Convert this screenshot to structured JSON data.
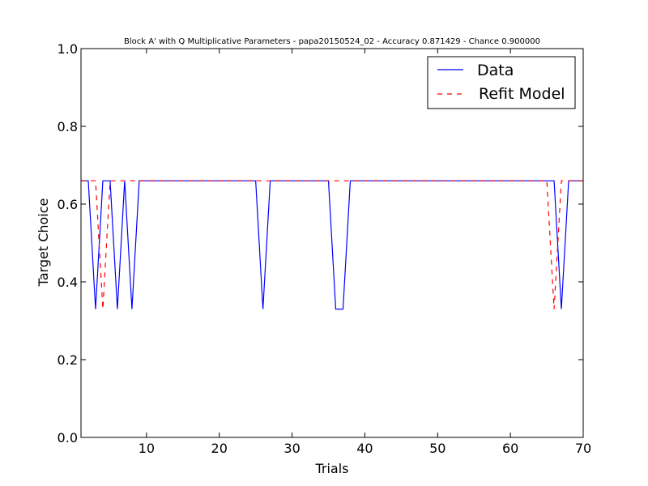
{
  "chart_data": {
    "type": "line",
    "title": "Block A' with Q Multiplicative Parameters - papa20150524_02 - Accuracy 0.871429 - Chance 0.900000",
    "xlabel": "Trials",
    "ylabel": "Target Choice",
    "xlim": [
      1,
      70
    ],
    "ylim": [
      0.0,
      1.0
    ],
    "xticks": [
      10,
      20,
      30,
      40,
      50,
      60,
      70
    ],
    "xtick_labels": [
      "10",
      "20",
      "30",
      "40",
      "50",
      "60",
      "70"
    ],
    "yticks": [
      0.0,
      0.2,
      0.4,
      0.6,
      0.8,
      1.0
    ],
    "ytick_labels": [
      "0.0",
      "0.2",
      "0.4",
      "0.6",
      "0.8",
      "1.0"
    ],
    "grid": false,
    "legend_position": "top-right",
    "series": [
      {
        "name": "Data",
        "color": "#0000ff",
        "style": "solid",
        "x": [
          1,
          2,
          3,
          4,
          5,
          6,
          7,
          8,
          9,
          10,
          11,
          12,
          13,
          14,
          15,
          16,
          17,
          18,
          19,
          20,
          21,
          22,
          23,
          24,
          25,
          26,
          27,
          28,
          29,
          30,
          31,
          32,
          33,
          34,
          35,
          36,
          37,
          38,
          39,
          40,
          41,
          42,
          43,
          44,
          45,
          46,
          47,
          48,
          49,
          50,
          51,
          52,
          53,
          54,
          55,
          56,
          57,
          58,
          59,
          60,
          61,
          62,
          63,
          64,
          65,
          66,
          67,
          68,
          69,
          70
        ],
        "y": [
          0.66,
          0.66,
          0.33,
          0.66,
          0.66,
          0.33,
          0.66,
          0.33,
          0.66,
          0.66,
          0.66,
          0.66,
          0.66,
          0.66,
          0.66,
          0.66,
          0.66,
          0.66,
          0.66,
          0.66,
          0.66,
          0.66,
          0.66,
          0.66,
          0.66,
          0.33,
          0.66,
          0.66,
          0.66,
          0.66,
          0.66,
          0.66,
          0.66,
          0.66,
          0.66,
          0.33,
          0.33,
          0.66,
          0.66,
          0.66,
          0.66,
          0.66,
          0.66,
          0.66,
          0.66,
          0.66,
          0.66,
          0.66,
          0.66,
          0.66,
          0.66,
          0.66,
          0.66,
          0.66,
          0.66,
          0.66,
          0.66,
          0.66,
          0.66,
          0.66,
          0.66,
          0.66,
          0.66,
          0.66,
          0.66,
          0.66,
          0.33,
          0.66,
          0.66,
          0.66
        ]
      },
      {
        "name": "Refit Model",
        "color": "#ff0000",
        "style": "dashed",
        "x": [
          1,
          2,
          3,
          4,
          5,
          6,
          7,
          8,
          9,
          10,
          11,
          12,
          13,
          14,
          15,
          16,
          17,
          18,
          19,
          20,
          21,
          22,
          23,
          24,
          25,
          26,
          27,
          28,
          29,
          30,
          31,
          32,
          33,
          34,
          35,
          36,
          37,
          38,
          39,
          40,
          41,
          42,
          43,
          44,
          45,
          46,
          47,
          48,
          49,
          50,
          51,
          52,
          53,
          54,
          55,
          56,
          57,
          58,
          59,
          60,
          61,
          62,
          63,
          64,
          65,
          66,
          67,
          68,
          69,
          70
        ],
        "y": [
          0.66,
          0.66,
          0.66,
          0.33,
          0.66,
          0.66,
          0.66,
          0.66,
          0.66,
          0.66,
          0.66,
          0.66,
          0.66,
          0.66,
          0.66,
          0.66,
          0.66,
          0.66,
          0.66,
          0.66,
          0.66,
          0.66,
          0.66,
          0.66,
          0.66,
          0.66,
          0.66,
          0.66,
          0.66,
          0.66,
          0.66,
          0.66,
          0.66,
          0.66,
          0.66,
          0.66,
          0.66,
          0.66,
          0.66,
          0.66,
          0.66,
          0.66,
          0.66,
          0.66,
          0.66,
          0.66,
          0.66,
          0.66,
          0.66,
          0.66,
          0.66,
          0.66,
          0.66,
          0.66,
          0.66,
          0.66,
          0.66,
          0.66,
          0.66,
          0.66,
          0.66,
          0.66,
          0.66,
          0.66,
          0.66,
          0.33,
          0.66,
          0.66,
          0.66,
          0.66
        ]
      }
    ]
  }
}
